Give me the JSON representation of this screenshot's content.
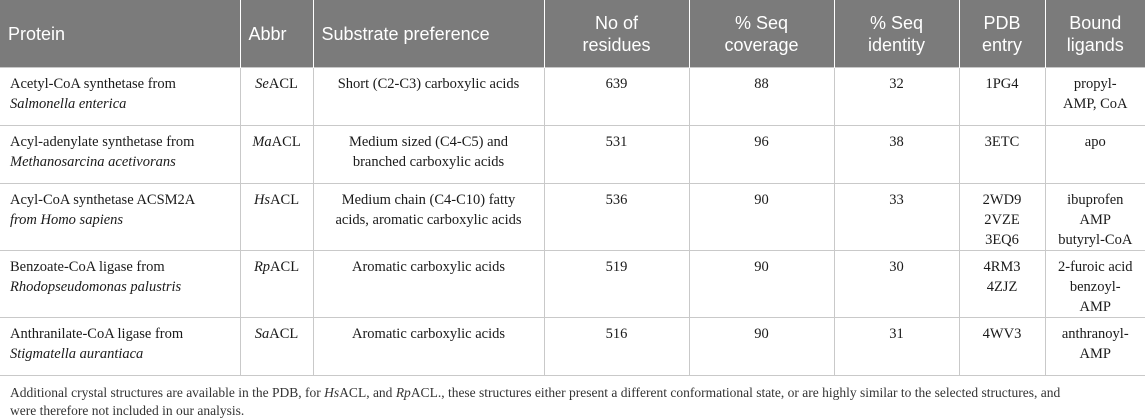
{
  "table": {
    "headers": [
      {
        "line1": "Protein",
        "line2": ""
      },
      {
        "line1": "Abbr",
        "line2": ""
      },
      {
        "line1": "Substrate preference",
        "line2": ""
      },
      {
        "line1": "No of",
        "line2": "residues"
      },
      {
        "line1": "% Seq",
        "line2": "coverage"
      },
      {
        "line1": "% Seq",
        "line2": "identity"
      },
      {
        "line1": "PDB",
        "line2": "entry"
      },
      {
        "line1": "Bound",
        "line2": "ligands"
      }
    ],
    "rows": [
      {
        "protein_l1": "Acetyl-CoA synthetase from",
        "protein_l2": "Salmonella enterica",
        "abbr_italic": "Se",
        "abbr_rest": "ACL",
        "substrate_l1": "Short (C2-C3) carboxylic acids",
        "substrate_l2": "",
        "residues": "639",
        "coverage": "88",
        "identity": "32",
        "pdb_l1": "1PG4",
        "pdb_l2": "",
        "ligands_l1": "propyl-",
        "ligands_l2": "AMP, CoA"
      },
      {
        "protein_l1": "Acyl-adenylate synthetase from",
        "protein_l2": "Methanosarcina acetivorans",
        "abbr_italic": "Ma",
        "abbr_rest": "ACL",
        "substrate_l1": "Medium sized (C4-C5) and",
        "substrate_l2": "branched carboxylic acids",
        "residues": "531",
        "coverage": "96",
        "identity": "38",
        "pdb_l1": "3ETC",
        "pdb_l2": "",
        "ligands_l1": "apo",
        "ligands_l2": ""
      },
      {
        "protein_l1": "Acyl-CoA synthetase ACSM2A",
        "protein_l2": "from Homo sapiens",
        "abbr_italic": "Hs",
        "abbr_rest": "ACL",
        "substrate_l1": "Medium chain (C4-C10) fatty",
        "substrate_l2": "acids, aromatic carboxylic acids",
        "residues": "536",
        "coverage": "90",
        "identity": "33",
        "pdb_l1": "2WD9",
        "pdb_l2": "2VZE 3EQ6",
        "ligands_l1": "ibuprofen AMP",
        "ligands_l2": "butyryl-CoA"
      },
      {
        "protein_l1": "Benzoate-CoA ligase from",
        "protein_l2": "Rhodopseudomonas palustris",
        "abbr_italic": "Rp",
        "abbr_rest": "ACL",
        "substrate_l1": "Aromatic carboxylic acids",
        "substrate_l2": "",
        "residues": "519",
        "coverage": "90",
        "identity": "30",
        "pdb_l1": "4RM3 4ZJZ",
        "pdb_l2": "",
        "ligands_l1": "2-furoic acid",
        "ligands_l2": "benzoyl- AMP"
      },
      {
        "protein_l1": "Anthranilate-CoA ligase from",
        "protein_l2": "Stigmatella aurantiaca",
        "abbr_italic": "Sa",
        "abbr_rest": "ACL",
        "substrate_l1": "Aromatic carboxylic acids",
        "substrate_l2": "",
        "residues": "516",
        "coverage": "90",
        "identity": "31",
        "pdb_l1": "4WV3",
        "pdb_l2": "",
        "ligands_l1": "anthranoyl-",
        "ligands_l2": "AMP"
      }
    ]
  },
  "footnote": {
    "part1": "Additional crystal structures are available in the PDB, for ",
    "hs": "Hs",
    "part2": "ACL, and ",
    "rp": "Rp",
    "part3": "ACL., these structures either present a different conformational state, or are highly similar to the selected structures, and",
    "line2": "were therefore not included in our analysis."
  },
  "colors": {
    "header_bg": "#7b7b7b",
    "header_text": "#ffffff",
    "grid": "#c9c9c9"
  }
}
